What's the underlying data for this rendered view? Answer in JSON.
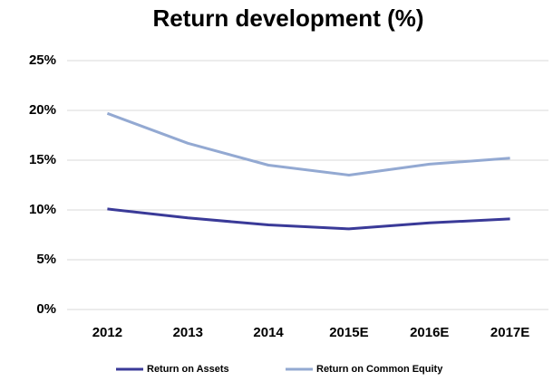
{
  "chart_data": {
    "type": "line",
    "title": "Return development (%)",
    "categories": [
      "2012",
      "2013",
      "2014",
      "2015E",
      "2016E",
      "2017E"
    ],
    "series": [
      {
        "name": "Return on Assets",
        "color": "#3a3a98",
        "values": [
          10.1,
          9.2,
          8.5,
          8.1,
          8.7,
          9.1
        ]
      },
      {
        "name": "Return on Common Equity",
        "color": "#93a9d2",
        "values": [
          19.7,
          16.7,
          14.5,
          13.5,
          14.6,
          15.2
        ]
      }
    ],
    "ylim": [
      0,
      25
    ],
    "yticks": [
      {
        "value": 0,
        "label": "0%"
      },
      {
        "value": 5,
        "label": "5%"
      },
      {
        "value": 10,
        "label": "10%"
      },
      {
        "value": 15,
        "label": "15%"
      },
      {
        "value": 20,
        "label": "20%"
      },
      {
        "value": 25,
        "label": "25%"
      }
    ],
    "grid": true,
    "legend": "bottom"
  }
}
